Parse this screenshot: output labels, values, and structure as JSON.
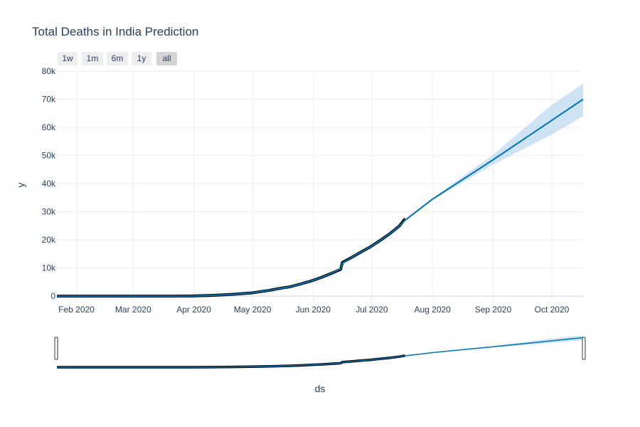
{
  "chart_data": {
    "type": "line",
    "title": "Total Deaths in India Prediction",
    "xlabel": "ds",
    "ylabel": "y",
    "ylim": [
      -2000,
      80000
    ],
    "y_ticks": [
      0,
      10000,
      20000,
      30000,
      40000,
      50000,
      60000,
      70000,
      80000
    ],
    "y_tick_labels": [
      "0",
      "10k",
      "20k",
      "30k",
      "40k",
      "50k",
      "60k",
      "70k",
      "80k"
    ],
    "x_range": [
      "2020-01-22",
      "2020-10-17"
    ],
    "x_ticks": [
      "2020-02-01",
      "2020-03-01",
      "2020-04-01",
      "2020-05-01",
      "2020-06-01",
      "2020-07-01",
      "2020-08-01",
      "2020-09-01",
      "2020-10-01"
    ],
    "x_tick_labels": [
      "Feb 2020",
      "Mar 2020",
      "Apr 2020",
      "May 2020",
      "Jun 2020",
      "Jul 2020",
      "Aug 2020",
      "Sep 2020",
      "Oct 2020"
    ],
    "range_selector": [
      "1w",
      "1m",
      "6m",
      "1y",
      "all"
    ],
    "active_range": "all",
    "grid": true,
    "has_range_slider": true,
    "colors": {
      "actual": "#000000",
      "forecast": "#0072b2",
      "interval": "#b3d4ec"
    },
    "series": [
      {
        "kind": "actual",
        "points": [
          [
            "2020-01-22",
            0
          ],
          [
            "2020-02-15",
            0
          ],
          [
            "2020-03-10",
            0
          ],
          [
            "2020-03-20",
            5
          ],
          [
            "2020-03-31",
            40
          ],
          [
            "2020-04-10",
            240
          ],
          [
            "2020-04-20",
            600
          ],
          [
            "2020-04-30",
            1100
          ],
          [
            "2020-05-05",
            1600
          ],
          [
            "2020-05-10",
            2100
          ],
          [
            "2020-05-15",
            2750
          ],
          [
            "2020-05-20",
            3300
          ],
          [
            "2020-05-25",
            4200
          ],
          [
            "2020-05-31",
            5400
          ],
          [
            "2020-06-05",
            6600
          ],
          [
            "2020-06-10",
            8000
          ],
          [
            "2020-06-15",
            9500
          ],
          [
            "2020-06-16",
            12000
          ],
          [
            "2020-06-20",
            13500
          ],
          [
            "2020-06-25",
            15500
          ],
          [
            "2020-06-30",
            17400
          ],
          [
            "2020-07-05",
            19700
          ],
          [
            "2020-07-10",
            22100
          ],
          [
            "2020-07-15",
            24900
          ],
          [
            "2020-07-18",
            27500
          ]
        ]
      },
      {
        "kind": "forecast",
        "points": [
          [
            "2020-01-22",
            0
          ],
          [
            "2020-02-15",
            0
          ],
          [
            "2020-03-10",
            0
          ],
          [
            "2020-03-20",
            5
          ],
          [
            "2020-03-31",
            40
          ],
          [
            "2020-04-10",
            240
          ],
          [
            "2020-04-20",
            600
          ],
          [
            "2020-04-30",
            1100
          ],
          [
            "2020-05-05",
            1600
          ],
          [
            "2020-05-10",
            2100
          ],
          [
            "2020-05-15",
            2750
          ],
          [
            "2020-05-20",
            3300
          ],
          [
            "2020-05-25",
            4200
          ],
          [
            "2020-05-31",
            5400
          ],
          [
            "2020-06-05",
            6600
          ],
          [
            "2020-06-10",
            8000
          ],
          [
            "2020-06-15",
            9700
          ],
          [
            "2020-06-16",
            11700
          ],
          [
            "2020-06-20",
            13500
          ],
          [
            "2020-06-25",
            15500
          ],
          [
            "2020-06-30",
            17400
          ],
          [
            "2020-07-05",
            19700
          ],
          [
            "2020-07-10",
            22100
          ],
          [
            "2020-07-15",
            24900
          ],
          [
            "2020-07-18",
            27000
          ],
          [
            "2020-08-01",
            34500
          ],
          [
            "2020-09-01",
            48500
          ],
          [
            "2020-10-01",
            62500
          ],
          [
            "2020-10-17",
            70000
          ]
        ]
      },
      {
        "kind": "interval_upper",
        "points": [
          [
            "2020-07-18",
            27200
          ],
          [
            "2020-08-01",
            34800
          ],
          [
            "2020-09-01",
            50300
          ],
          [
            "2020-10-01",
            68000
          ],
          [
            "2020-10-17",
            75500
          ]
        ]
      },
      {
        "kind": "interval_lower",
        "points": [
          [
            "2020-07-18",
            26800
          ],
          [
            "2020-08-01",
            34200
          ],
          [
            "2020-09-01",
            46800
          ],
          [
            "2020-10-01",
            57500
          ],
          [
            "2020-10-17",
            64000
          ]
        ]
      }
    ]
  }
}
